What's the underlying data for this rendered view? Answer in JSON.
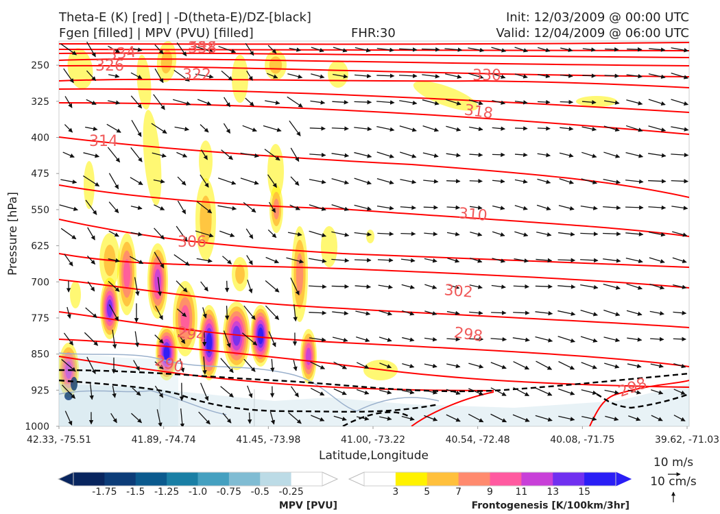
{
  "header": {
    "line1_left": "Theta-E (K) [red] | -D(theta-E)/DZ-[black]",
    "line2_left": "Fgen [filled] | MPV (PVU) [filled]",
    "fhr": "FHR:30",
    "init": "Init: 12/03/2009 @ 00:00 UTC",
    "valid": "Valid: 12/04/2009 @ 06:00 UTC"
  },
  "chart_data": {
    "type": "cross-section",
    "xlabel": "Latitude,Longitude",
    "ylabel": "Pressure [hPa]",
    "ylim": [
      1000,
      200
    ],
    "y_ticks": [
      250,
      325,
      400,
      475,
      550,
      625,
      700,
      775,
      850,
      925,
      1000
    ],
    "x_ticks": [
      "42.33, -75.51",
      "41.89, -74.74",
      "41.45, -73.98",
      "41.00, -73.22",
      "40.54, -72.48",
      "40.08, -71.75",
      "39.62, -71.03"
    ],
    "theta_e_labels": [
      "334",
      "338",
      "342",
      "326",
      "322",
      "330",
      "318",
      "314",
      "310",
      "306",
      "302",
      "298",
      "294",
      "290",
      "298"
    ],
    "colors": {
      "theta_e": "#ff0000",
      "theta_e_label": "#f05a5a",
      "stability": "#000000",
      "grid": "#cccccc"
    }
  },
  "colorbars": {
    "mpv": {
      "label": "MPV [PVU]",
      "ticks": [
        "-1.75",
        "-1.5",
        "-1.25",
        "-1.0",
        "-0.75",
        "-0.5",
        "-0.25"
      ],
      "colors": [
        "#08255e",
        "#0c3c78",
        "#0b5a8e",
        "#1a7fa5",
        "#45a0c0",
        "#80bcd3",
        "#bcdbe6",
        "#ffffff"
      ]
    },
    "fgen": {
      "label": "Frontogenesis [K/100km/3hr]",
      "ticks": [
        "3",
        "5",
        "7",
        "9",
        "11",
        "13",
        "15"
      ],
      "colors": [
        "#ffffff",
        "#fff200",
        "#ffc03c",
        "#ff8a6e",
        "#ff5aa0",
        "#c840d8",
        "#7030f0",
        "#2a1ef5"
      ]
    }
  },
  "reference_vectors": {
    "horizontal": "10 m/s",
    "vertical": "10 cm/s"
  }
}
